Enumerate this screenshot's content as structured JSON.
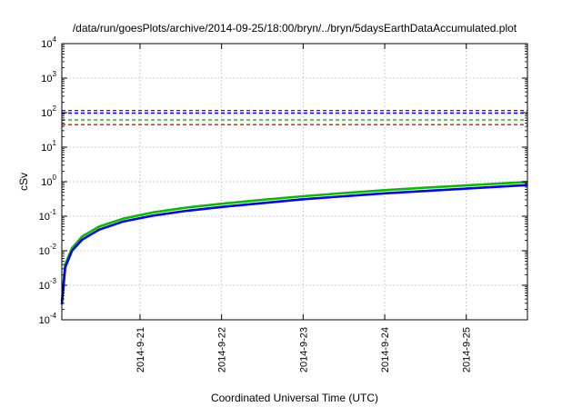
{
  "chart_data": {
    "type": "line",
    "title": "/data/run/goesPlots/archive/2014-09-25/18:00/bryn/../bryn/5daysEarthDataAccumulated.plot",
    "xlabel": "Coordinated Universal Time (UTC)",
    "ylabel": "cSv",
    "x_scale": "time",
    "y_scale": "log",
    "xlim": [
      "2014-09-20T01:00",
      "2014-09-25T18:00"
    ],
    "ylim": [
      0.0001,
      10000
    ],
    "x_ticks": [
      "2014-9-21",
      "2014-9-22",
      "2014-9-23",
      "2014-9-24",
      "2014-9-25"
    ],
    "x_tick_values": [
      "2014-09-21T00:00",
      "2014-09-22T00:00",
      "2014-09-23T00:00",
      "2014-09-24T00:00",
      "2014-09-25T00:00"
    ],
    "y_ticks": [
      {
        "base": "10",
        "exp": "-4",
        "value": 0.0001
      },
      {
        "base": "10",
        "exp": "-3",
        "value": 0.001
      },
      {
        "base": "10",
        "exp": "-2",
        "value": 0.01
      },
      {
        "base": "10",
        "exp": "-1",
        "value": 0.1
      },
      {
        "base": "10",
        "exp": "0",
        "value": 1
      },
      {
        "base": "10",
        "exp": "1",
        "value": 10
      },
      {
        "base": "10",
        "exp": "2",
        "value": 100
      },
      {
        "base": "10",
        "exp": "3",
        "value": 1000
      },
      {
        "base": "10",
        "exp": "4",
        "value": 10000
      }
    ],
    "grid": true,
    "legend": "none",
    "series": [
      {
        "color": "#00c000",
        "style": "solid",
        "x": [
          "2014-09-20T01:00",
          "2014-09-20T02:00",
          "2014-09-20T04:00",
          "2014-09-20T07:00",
          "2014-09-20T12:00",
          "2014-09-20T19:00",
          "2014-09-21T04:00",
          "2014-09-21T14:00",
          "2014-09-22T00:00",
          "2014-09-22T12:00",
          "2014-09-23T00:00",
          "2014-09-23T12:00",
          "2014-09-24T00:00",
          "2014-09-24T12:00",
          "2014-09-25T00:00",
          "2014-09-25T18:00"
        ],
        "y": [
          0.00035,
          0.004,
          0.012,
          0.026,
          0.05,
          0.085,
          0.13,
          0.18,
          0.23,
          0.3,
          0.38,
          0.47,
          0.57,
          0.67,
          0.78,
          0.98
        ]
      },
      {
        "color": "#0000ff",
        "style": "solid",
        "x": [
          "2014-09-20T01:00",
          "2014-09-20T02:00",
          "2014-09-20T04:00",
          "2014-09-20T07:00",
          "2014-09-20T12:00",
          "2014-09-20T19:00",
          "2014-09-21T04:00",
          "2014-09-21T14:00",
          "2014-09-22T00:00",
          "2014-09-22T12:00",
          "2014-09-23T00:00",
          "2014-09-23T12:00",
          "2014-09-24T00:00",
          "2014-09-24T12:00",
          "2014-09-25T00:00",
          "2014-09-25T18:00"
        ],
        "y": [
          0.00028,
          0.0033,
          0.01,
          0.021,
          0.041,
          0.07,
          0.105,
          0.145,
          0.185,
          0.24,
          0.31,
          0.38,
          0.46,
          0.54,
          0.63,
          0.8
        ]
      },
      {
        "color": "#8000c0",
        "style": "dashed",
        "x": [
          "2014-09-20T01:00",
          "2014-09-25T18:00"
        ],
        "y": [
          115,
          115
        ]
      },
      {
        "color": "#0000ff",
        "style": "dashed",
        "x": [
          "2014-09-20T01:00",
          "2014-09-25T18:00"
        ],
        "y": [
          97,
          97
        ]
      },
      {
        "color": "#00c000",
        "style": "dashed",
        "x": [
          "2014-09-20T01:00",
          "2014-09-25T18:00"
        ],
        "y": [
          62,
          62
        ]
      },
      {
        "color": "#ff0000",
        "style": "dashed",
        "x": [
          "2014-09-20T01:00",
          "2014-09-25T18:00"
        ],
        "y": [
          45,
          45
        ]
      }
    ]
  }
}
